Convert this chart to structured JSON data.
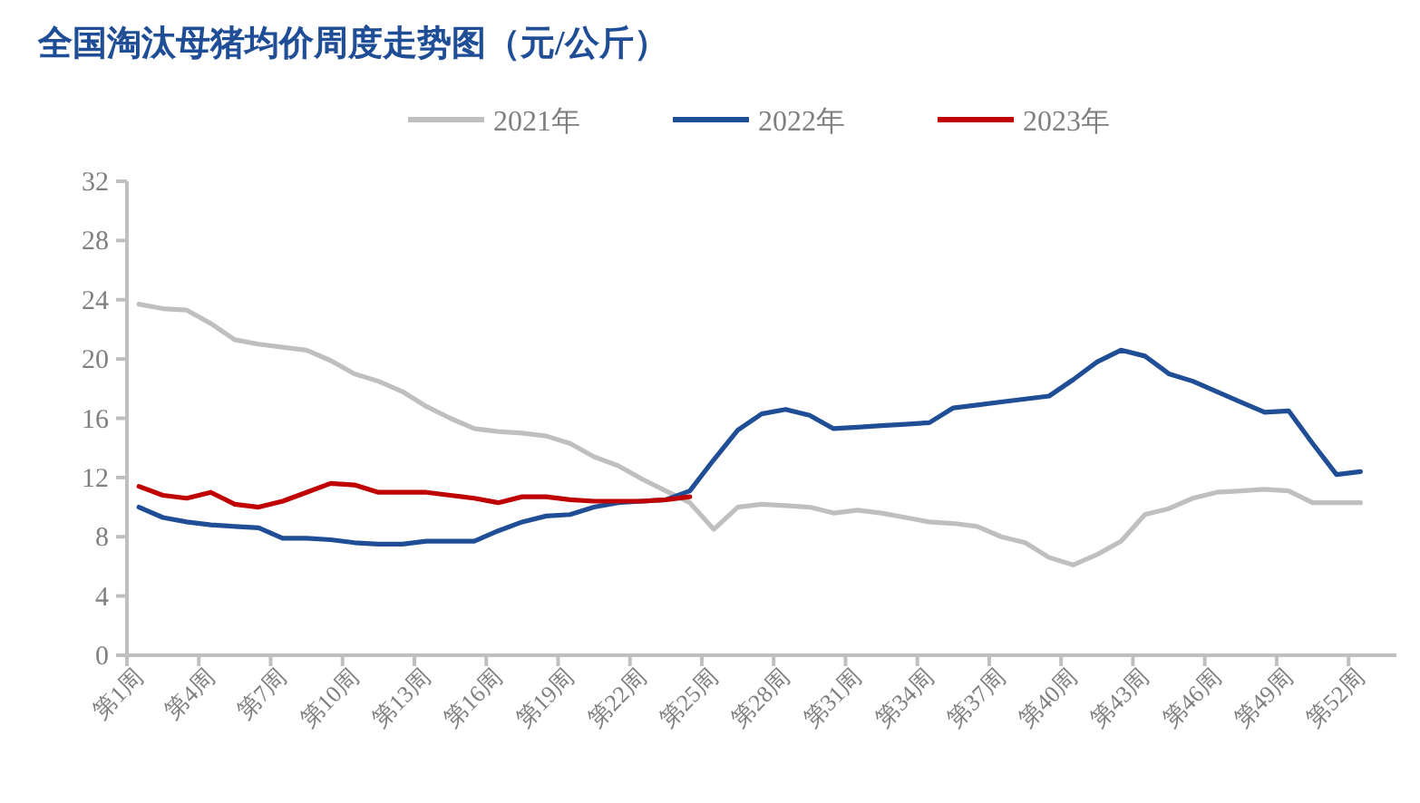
{
  "chart_data": {
    "type": "line",
    "title": "全国淘汰母猪均价周度走势图（元/公斤）",
    "categories": [
      "第1周",
      null,
      null,
      "第4周",
      null,
      null,
      "第7周",
      null,
      null,
      "第10周",
      null,
      null,
      "第13周",
      null,
      null,
      "第16周",
      null,
      null,
      "第19周",
      null,
      null,
      "第22周",
      null,
      null,
      "第25周",
      null,
      null,
      "第28周",
      null,
      null,
      "第31周",
      null,
      null,
      "第34周",
      null,
      null,
      "第37周",
      null,
      null,
      "第40周",
      null,
      null,
      "第43周",
      null,
      null,
      "第46周",
      null,
      null,
      "第49周",
      null,
      null,
      "第52周",
      null
    ],
    "series": [
      {
        "name": "2021年",
        "color": "#bfbfbf",
        "values": [
          23.7,
          23.4,
          23.3,
          22.4,
          21.3,
          21.0,
          20.8,
          20.6,
          19.9,
          19.0,
          18.5,
          17.8,
          16.8,
          16.0,
          15.3,
          15.1,
          15.0,
          14.8,
          14.3,
          13.4,
          12.8,
          11.9,
          11.1,
          10.3,
          8.5,
          10.0,
          10.2,
          10.1,
          10.0,
          9.6,
          9.8,
          9.6,
          9.3,
          9.0,
          8.9,
          8.7,
          8.0,
          7.6,
          6.6,
          6.1,
          6.8,
          7.7,
          9.5,
          9.9,
          10.6,
          11.0,
          11.1,
          11.2,
          11.1,
          10.3,
          10.3,
          10.3,
          null
        ]
      },
      {
        "name": "2022年",
        "color": "#1f4e96",
        "values": [
          10.0,
          9.3,
          9.0,
          8.8,
          8.7,
          8.6,
          7.9,
          7.9,
          7.8,
          7.6,
          7.5,
          7.5,
          7.7,
          7.7,
          7.7,
          8.4,
          9.0,
          9.4,
          9.5,
          10.0,
          10.3,
          10.4,
          10.5,
          11.1,
          13.2,
          15.2,
          16.3,
          16.6,
          16.2,
          15.3,
          15.4,
          15.5,
          15.6,
          15.7,
          16.7,
          16.9,
          17.1,
          17.3,
          17.5,
          18.6,
          19.8,
          20.6,
          20.2,
          19.0,
          18.5,
          17.8,
          17.1,
          16.4,
          16.5,
          14.3,
          12.2,
          12.4,
          null
        ]
      },
      {
        "name": "2023年",
        "color": "#c00000",
        "values": [
          11.4,
          10.8,
          10.6,
          11.0,
          10.2,
          10.0,
          10.4,
          11.0,
          11.6,
          11.5,
          11.0,
          11.0,
          11.0,
          10.8,
          10.6,
          10.3,
          10.7,
          10.7,
          10.5,
          10.4,
          10.4,
          10.4,
          10.5,
          10.7,
          null,
          null,
          null,
          null,
          null,
          null,
          null,
          null,
          null,
          null,
          null,
          null,
          null,
          null,
          null,
          null,
          null,
          null,
          null,
          null,
          null,
          null,
          null,
          null,
          null,
          null,
          null,
          null,
          null
        ]
      }
    ],
    "ylim": [
      0,
      32
    ],
    "yticks": [
      0,
      4,
      8,
      12,
      16,
      20,
      24,
      28,
      32
    ],
    "legend": "top"
  }
}
